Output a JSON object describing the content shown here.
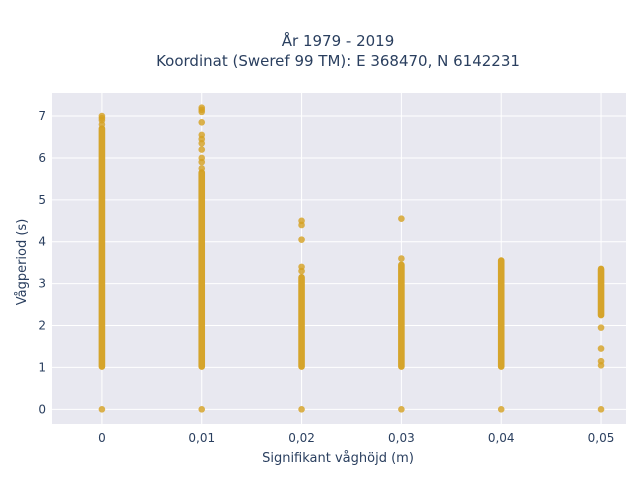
{
  "chart_data": {
    "type": "scatter",
    "title": "År 1979 - 2019",
    "subtitle": "Koordinat (Sweref 99 TM): E 368470, N 6142231",
    "xlabel": "Signifikant våghöjd (m)",
    "ylabel": "Vågperiod (s)",
    "xlim": [
      -0.005,
      0.0525
    ],
    "ylim": [
      -0.35,
      7.55
    ],
    "x_ticks": [
      0,
      0.01,
      0.02,
      0.03,
      0.04,
      0.05
    ],
    "x_tick_labels": [
      "0",
      "0,01",
      "0,02",
      "0,03",
      "0,04",
      "0,05"
    ],
    "y_ticks": [
      0,
      1,
      2,
      3,
      4,
      5,
      6,
      7
    ],
    "y_tick_labels": [
      "0",
      "1",
      "2",
      "3",
      "4",
      "5",
      "6",
      "7"
    ],
    "grid": true,
    "background": "#e8e8f0",
    "marker_color": "#d4a020",
    "series": [
      {
        "x": 0,
        "range": [
          1.02,
          6.7
        ],
        "points": [
          0,
          6.8,
          6.9,
          6.95,
          7.0
        ]
      },
      {
        "x": 0.01,
        "range": [
          1.02,
          5.65
        ],
        "points": [
          0,
          5.75,
          5.9,
          6.0,
          6.2,
          6.35,
          6.45,
          6.55,
          6.85,
          7.1,
          7.15,
          7.2
        ]
      },
      {
        "x": 0.02,
        "range": [
          1.02,
          3.15
        ],
        "points": [
          0,
          3.3,
          3.4,
          4.05,
          4.4,
          4.5
        ]
      },
      {
        "x": 0.03,
        "range": [
          1.02,
          3.45
        ],
        "points": [
          0,
          3.6,
          4.55
        ]
      },
      {
        "x": 0.04,
        "range": [
          1.02,
          3.55
        ],
        "points": [
          0
        ]
      },
      {
        "x": 0.05,
        "range": [
          2.25,
          3.35
        ],
        "points": [
          0,
          1.05,
          1.15,
          1.45,
          1.95
        ]
      }
    ]
  }
}
